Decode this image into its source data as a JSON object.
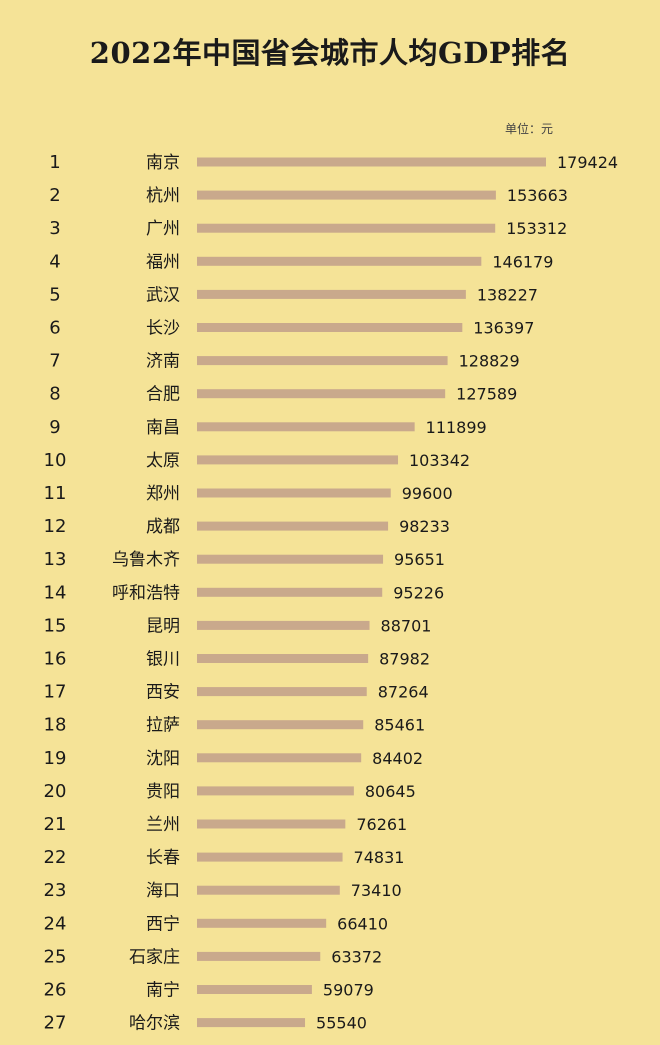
{
  "header": {
    "title": "2022年中国省会城市人均GDP排名",
    "unit": "单位：元"
  },
  "chart_data": {
    "type": "bar",
    "orientation": "horizontal",
    "title": "2022年中国省会城市人均GDP排名",
    "unit": "单位：元",
    "ranks": [
      "1",
      "2",
      "3",
      "4",
      "5",
      "6",
      "7",
      "8",
      "9",
      "10",
      "11",
      "12",
      "13",
      "14",
      "15",
      "16",
      "17",
      "18",
      "19",
      "20",
      "21",
      "22",
      "23",
      "24",
      "25",
      "26",
      "27"
    ],
    "categories": [
      "南京",
      "杭州",
      "广州",
      "福州",
      "武汉",
      "长沙",
      "济南",
      "合肥",
      "南昌",
      "太原",
      "郑州",
      "成都",
      "乌鲁木齐",
      "呼和浩特",
      "昆明",
      "银川",
      "西安",
      "拉萨",
      "沈阳",
      "贵阳",
      "兰州",
      "长春",
      "海口",
      "西宁",
      "石家庄",
      "南宁",
      "哈尔滨"
    ],
    "values": [
      179424,
      153663,
      153312,
      146179,
      138227,
      136397,
      128829,
      127589,
      111899,
      103342,
      99600,
      98233,
      95651,
      95226,
      88701,
      87982,
      87264,
      85461,
      84402,
      80645,
      76261,
      74831,
      73410,
      66410,
      63372,
      59079,
      55540
    ],
    "bar_color": "#c9a98c",
    "background_color": "#f5e397"
  }
}
